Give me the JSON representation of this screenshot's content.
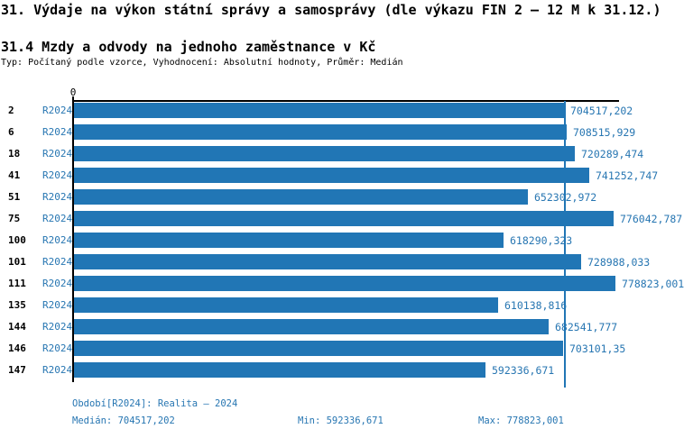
{
  "page": {
    "title": "31. Výdaje na výkon státní správy a samosprávy (dle výkazu FIN 2 – 12 M k 31.12.)",
    "subtitle": "31.4 Mzdy a odvody na jednoho zaměstnance v Kč",
    "meta": "Typ: Počítaný podle vzorce, Vyhodnocení: Absolutní hodnoty, Průměr: Medián"
  },
  "colors": {
    "bar": "#2176b5",
    "blue_text": "#2776b2",
    "axis": "#000000"
  },
  "chart_data": {
    "type": "bar",
    "orientation": "horizontal",
    "title": "31.4 Mzdy a odvody na jednoho zaměstnance v Kč",
    "xlabel": "",
    "ylabel": "",
    "axis_origin_label": "0",
    "xlim": [
      0,
      778823.001
    ],
    "grid": false,
    "legend_position": "none",
    "series_label": "R2024",
    "categories": [
      "2",
      "6",
      "18",
      "41",
      "51",
      "75",
      "100",
      "101",
      "111",
      "135",
      "144",
      "146",
      "147"
    ],
    "values": [
      704517.202,
      708515.929,
      720289.474,
      741252.747,
      652302.972,
      776042.787,
      618290.323,
      728988.033,
      778823.001,
      610138.816,
      682541.777,
      703101.35,
      592336.671
    ],
    "value_labels": [
      "704517,202",
      "708515,929",
      "720289,474",
      "741252,747",
      "652302,972",
      "776042,787",
      "618290,323",
      "728988,033",
      "778823,001",
      "610138,816",
      "682541,777",
      "703101,35",
      "592336,671"
    ],
    "median": 704517.202,
    "min": 592336.671,
    "max": 778823.001
  },
  "footer": {
    "period_label": "Období[R2024]: Realita – 2024",
    "median_label": "Medián: 704517,202",
    "min_label": "Min: 592336,671",
    "max_label": "Max: 778823,001"
  }
}
